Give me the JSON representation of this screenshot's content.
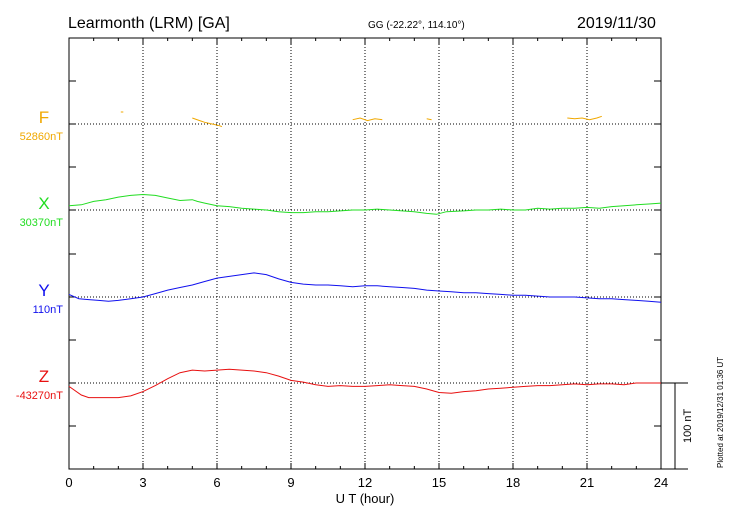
{
  "header": {
    "station": "Learmonth (LRM)  [GA]",
    "coords": "GG (-22.22°, 114.10°)",
    "date": "2019/11/30"
  },
  "side_note": "Plotted at 2019/12/31 01:36 UT",
  "scale_label": "100 nT",
  "chart_data": {
    "type": "line",
    "title": "Learmonth (LRM)  [GA]",
    "xlabel": "U T (hour)",
    "xlim": [
      0,
      24
    ],
    "x_ticks": [
      "0",
      "3",
      "6",
      "9",
      "12",
      "15",
      "18",
      "21",
      "24"
    ],
    "grid": true,
    "scale_bar_nT": 100,
    "series": [
      {
        "name": "F",
        "baseline_label": "52860nT",
        "color": "#f0a800",
        "segments": [
          [
            [
              2.1,
              14
            ],
            [
              2.2,
              14
            ]
          ],
          [
            [
              5.0,
              7
            ],
            [
              5.3,
              4
            ],
            [
              5.5,
              2
            ],
            [
              5.8,
              0
            ],
            [
              6.1,
              -2
            ],
            [
              6.2,
              -3
            ]
          ],
          [
            [
              11.5,
              5
            ],
            [
              11.8,
              7
            ],
            [
              12.1,
              4
            ],
            [
              12.4,
              6
            ],
            [
              12.7,
              5
            ]
          ],
          [
            [
              14.5,
              6
            ],
            [
              14.7,
              5
            ]
          ],
          [
            [
              20.2,
              7
            ],
            [
              20.5,
              6
            ],
            [
              20.8,
              7
            ],
            [
              21.1,
              5
            ],
            [
              21.4,
              7
            ],
            [
              21.6,
              9
            ]
          ]
        ]
      },
      {
        "name": "X",
        "baseline_label": "30370nT",
        "color": "#22dd22",
        "segments": [
          [
            [
              0,
              5
            ],
            [
              0.5,
              6
            ],
            [
              1.0,
              10
            ],
            [
              1.5,
              12
            ],
            [
              2.0,
              15
            ],
            [
              2.5,
              17
            ],
            [
              3.0,
              18
            ],
            [
              3.5,
              17
            ],
            [
              4.0,
              14
            ],
            [
              4.5,
              11
            ],
            [
              5.0,
              12
            ],
            [
              5.2,
              10
            ],
            [
              5.5,
              8
            ],
            [
              6.0,
              5
            ],
            [
              6.5,
              4
            ],
            [
              7.0,
              2
            ],
            [
              7.5,
              1
            ],
            [
              8.0,
              0
            ],
            [
              8.5,
              -2
            ],
            [
              9.0,
              -3
            ],
            [
              9.5,
              -3
            ],
            [
              10.0,
              -2
            ],
            [
              10.5,
              -2
            ],
            [
              11.0,
              -1
            ],
            [
              11.5,
              0
            ],
            [
              12.0,
              0
            ],
            [
              12.5,
              1
            ],
            [
              13.0,
              0
            ],
            [
              13.5,
              -1
            ],
            [
              14.0,
              -2
            ],
            [
              14.5,
              -4
            ],
            [
              14.9,
              -5
            ],
            [
              15.3,
              -2
            ],
            [
              16.0,
              -1
            ],
            [
              16.5,
              0
            ],
            [
              17.0,
              0
            ],
            [
              17.5,
              1
            ],
            [
              18.0,
              0
            ],
            [
              18.5,
              0
            ],
            [
              19.0,
              2
            ],
            [
              19.5,
              1
            ],
            [
              20.0,
              2
            ],
            [
              20.5,
              2
            ],
            [
              21.0,
              3
            ],
            [
              21.5,
              2
            ],
            [
              22.0,
              4
            ],
            [
              22.5,
              5
            ],
            [
              23.0,
              6
            ],
            [
              23.5,
              7
            ],
            [
              24.0,
              8
            ]
          ]
        ]
      },
      {
        "name": "Y",
        "baseline_label": "110nT",
        "color": "#1010ee",
        "segments": [
          [
            [
              0,
              3
            ],
            [
              0.4,
              -2
            ],
            [
              0.8,
              -3
            ],
            [
              1.2,
              -4
            ],
            [
              1.6,
              -5
            ],
            [
              2.0,
              -4
            ],
            [
              2.5,
              -2
            ],
            [
              3.0,
              0
            ],
            [
              3.5,
              4
            ],
            [
              4.0,
              8
            ],
            [
              4.5,
              11
            ],
            [
              5.0,
              14
            ],
            [
              5.5,
              18
            ],
            [
              6.0,
              22
            ],
            [
              6.5,
              24
            ],
            [
              7.0,
              26
            ],
            [
              7.5,
              28
            ],
            [
              8.0,
              26
            ],
            [
              8.5,
              21
            ],
            [
              9.0,
              17
            ],
            [
              9.5,
              15
            ],
            [
              10.0,
              14
            ],
            [
              10.5,
              14
            ],
            [
              11.0,
              13
            ],
            [
              11.5,
              12
            ],
            [
              12.0,
              13
            ],
            [
              12.5,
              13
            ],
            [
              13.0,
              12
            ],
            [
              13.5,
              11
            ],
            [
              14.0,
              10
            ],
            [
              14.5,
              8
            ],
            [
              15.0,
              7
            ],
            [
              15.5,
              6
            ],
            [
              16.0,
              5
            ],
            [
              16.5,
              5
            ],
            [
              17.0,
              4
            ],
            [
              17.5,
              3
            ],
            [
              18.0,
              2
            ],
            [
              18.5,
              2
            ],
            [
              19.0,
              1
            ],
            [
              19.5,
              0
            ],
            [
              20.0,
              0
            ],
            [
              20.5,
              0
            ],
            [
              21.0,
              -1
            ],
            [
              21.5,
              -2
            ],
            [
              22.0,
              -2
            ],
            [
              22.5,
              -3
            ],
            [
              23.0,
              -4
            ],
            [
              23.5,
              -5
            ],
            [
              24.0,
              -6
            ]
          ]
        ]
      },
      {
        "name": "Z",
        "baseline_label": "-43270nT",
        "color": "#e81010",
        "segments": [
          [
            [
              0,
              -4
            ],
            [
              0.5,
              -14
            ],
            [
              0.8,
              -17
            ],
            [
              1.2,
              -17
            ],
            [
              2.0,
              -17
            ],
            [
              2.5,
              -15
            ],
            [
              3.0,
              -10
            ],
            [
              3.5,
              -3
            ],
            [
              4.0,
              5
            ],
            [
              4.5,
              12
            ],
            [
              5.0,
              15
            ],
            [
              5.5,
              14
            ],
            [
              6.0,
              15
            ],
            [
              6.5,
              16
            ],
            [
              7.0,
              15
            ],
            [
              7.5,
              14
            ],
            [
              8.0,
              12
            ],
            [
              8.5,
              8
            ],
            [
              9.0,
              3
            ],
            [
              9.5,
              1
            ],
            [
              10.0,
              -2
            ],
            [
              10.5,
              -4
            ],
            [
              11.0,
              -3
            ],
            [
              11.5,
              -4
            ],
            [
              12.0,
              -4
            ],
            [
              12.5,
              -3
            ],
            [
              13.0,
              -2
            ],
            [
              13.5,
              -3
            ],
            [
              14.0,
              -4
            ],
            [
              14.5,
              -7
            ],
            [
              15.0,
              -11
            ],
            [
              15.5,
              -12
            ],
            [
              16.0,
              -10
            ],
            [
              16.5,
              -9
            ],
            [
              17.0,
              -7
            ],
            [
              17.5,
              -6
            ],
            [
              18.0,
              -5
            ],
            [
              18.5,
              -4
            ],
            [
              19.0,
              -3
            ],
            [
              19.5,
              -3
            ],
            [
              20.0,
              -2
            ],
            [
              20.5,
              -1
            ],
            [
              21.0,
              -2
            ],
            [
              21.5,
              -1
            ],
            [
              22.0,
              -1
            ],
            [
              22.5,
              -2
            ],
            [
              23.0,
              0
            ],
            [
              23.5,
              0
            ],
            [
              24.0,
              0
            ]
          ]
        ]
      }
    ]
  }
}
